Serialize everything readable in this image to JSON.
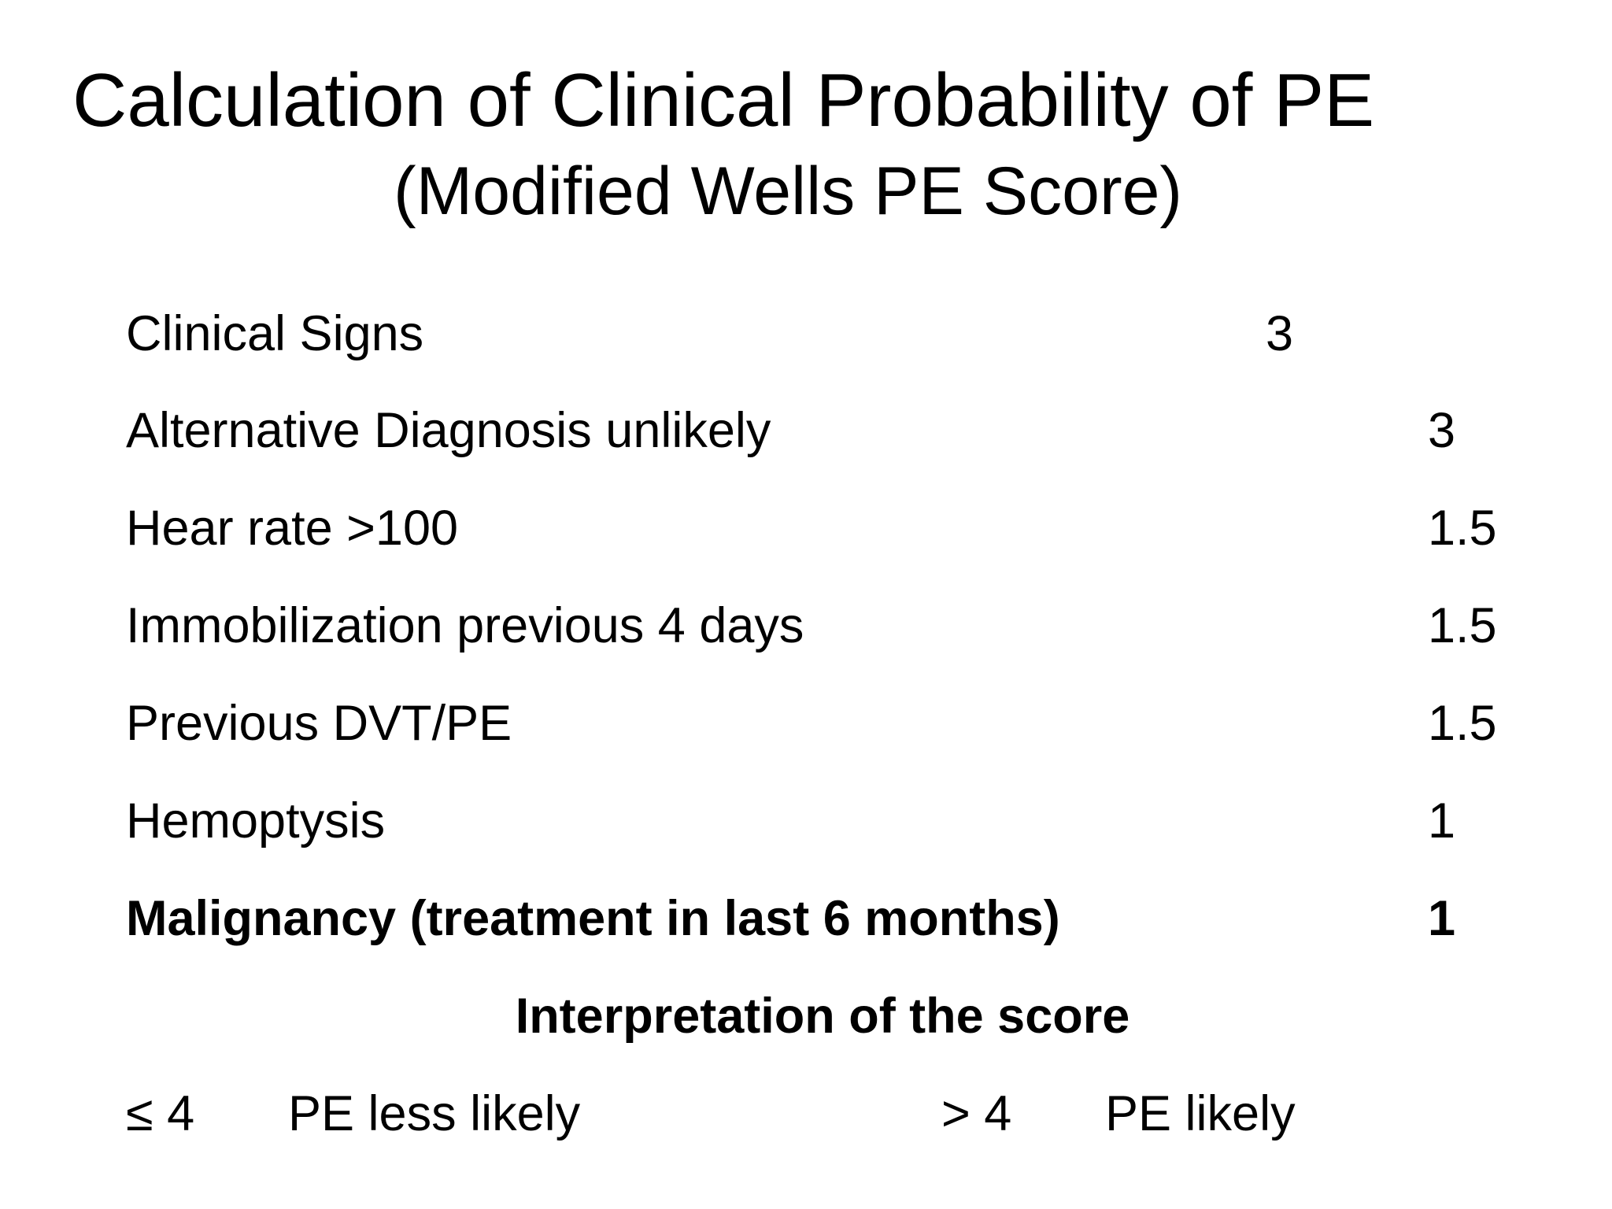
{
  "title": "Calculation of Clinical Probability of PE",
  "subtitle": "(Modified Wells PE Score)",
  "criteria": [
    {
      "label": "Clinical Signs",
      "points": "3"
    },
    {
      "label": "Alternative Diagnosis unlikely",
      "points": "3"
    },
    {
      "label": "Hear rate >100",
      "points": "1.5"
    },
    {
      "label": "Immobilization previous 4 days",
      "points": "1.5"
    },
    {
      "label": "Previous DVT/PE",
      "points": "1.5"
    },
    {
      "label": "Hemoptysis",
      "points": "1"
    },
    {
      "label": "Malignancy (treatment in last 6 months)",
      "points": "1"
    }
  ],
  "interpretation": {
    "heading": "Interpretation of the score",
    "low": {
      "threshold": "≤ 4",
      "text": "PE less likely"
    },
    "high": {
      "threshold": "> 4",
      "text": "PE likely"
    }
  }
}
